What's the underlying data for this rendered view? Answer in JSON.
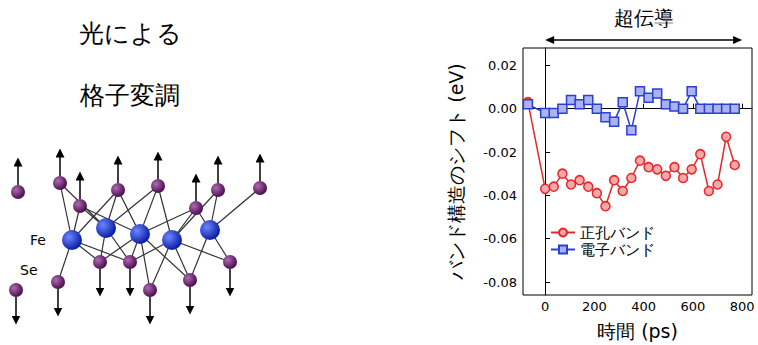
{
  "chart_data": {
    "type": "line",
    "x_label": "時間 (ps)",
    "y_label": "バンド構造のシフト (eV)",
    "x": [
      -70,
      0,
      35,
      70,
      105,
      140,
      175,
      210,
      245,
      280,
      315,
      350,
      385,
      420,
      455,
      490,
      525,
      560,
      595,
      630,
      665,
      700,
      735,
      770
    ],
    "series": [
      {
        "name": "正孔バンド",
        "color": "#e8262a",
        "marker": "circle",
        "values": [
          0.003,
          -0.037,
          -0.036,
          -0.03,
          -0.035,
          -0.033,
          -0.036,
          -0.039,
          -0.045,
          -0.033,
          -0.038,
          -0.032,
          -0.024,
          -0.027,
          -0.028,
          -0.031,
          -0.027,
          -0.032,
          -0.028,
          -0.021,
          -0.038,
          -0.035,
          -0.013,
          -0.026
        ]
      },
      {
        "name": "電子バンド",
        "color": "#2a3fd6",
        "marker": "square",
        "values": [
          0.002,
          -0.002,
          -0.002,
          0.0,
          0.004,
          0.002,
          0.004,
          0.0,
          -0.004,
          -0.006,
          0.003,
          -0.01,
          0.008,
          0.005,
          0.007,
          0.002,
          0.001,
          0.0,
          0.008,
          0.0,
          0.0,
          0.0,
          0.0,
          0.0
        ]
      }
    ],
    "xlim": [
      -90,
      840
    ],
    "xticks": [
      0,
      200,
      400,
      600,
      800
    ],
    "ylim": [
      -0.086,
      0.028
    ],
    "yticks": [
      -0.08,
      -0.06,
      -0.04,
      -0.02,
      {
        "value": 0,
        "label": "0.00"
      },
      0.02
    ],
    "legend": "lower left",
    "grid": false,
    "annotations": [
      {
        "text": "超伝導",
        "x_range": [
          0,
          800
        ]
      }
    ]
  },
  "diagram": {
    "caption": [
      "光による",
      "格子変調"
    ],
    "atoms": [
      "Fe",
      "Se"
    ]
  }
}
